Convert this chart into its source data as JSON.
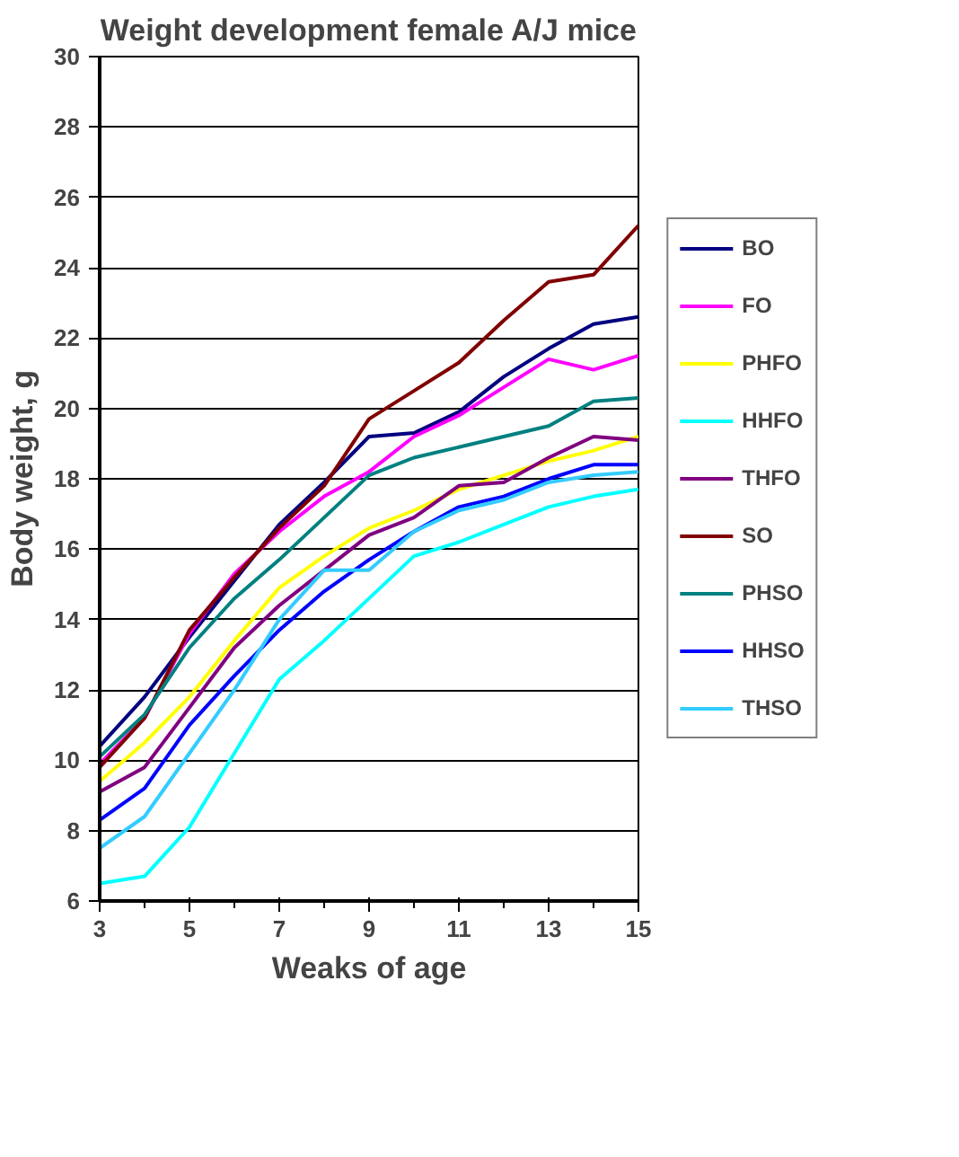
{
  "chart_data": {
    "type": "line",
    "title": "Weight development female A/J mice",
    "xlabel": "Weaks of age",
    "ylabel": "Body weight, g",
    "x": [
      3,
      4,
      5,
      6,
      7,
      8,
      9,
      10,
      11,
      12,
      13,
      14,
      15
    ],
    "xlim": [
      3,
      15
    ],
    "xticks": [
      3,
      5,
      7,
      9,
      11,
      13,
      15
    ],
    "ylim": [
      6,
      30
    ],
    "yticks": [
      6,
      8,
      10,
      12,
      14,
      16,
      18,
      20,
      22,
      24,
      26,
      28,
      30
    ],
    "grid": "y",
    "legend": "right",
    "marker": "none",
    "line_style": "solid",
    "series": [
      {
        "name": "BO",
        "color": "#000080",
        "values": [
          10.4,
          11.8,
          13.5,
          15.1,
          16.7,
          17.9,
          19.2,
          19.3,
          19.9,
          20.9,
          21.7,
          22.4,
          22.6
        ]
      },
      {
        "name": "FO",
        "color": "#ff00ff",
        "values": [
          9.9,
          11.2,
          13.6,
          15.3,
          16.5,
          17.5,
          18.2,
          19.2,
          19.8,
          20.6,
          21.4,
          21.1,
          21.5
        ]
      },
      {
        "name": "PHFO",
        "color": "#ffff00",
        "values": [
          9.4,
          10.5,
          11.8,
          13.4,
          14.9,
          15.8,
          16.6,
          17.1,
          17.7,
          18.1,
          18.5,
          18.8,
          19.2
        ]
      },
      {
        "name": "HHFO",
        "color": "#00ffff",
        "values": [
          6.5,
          6.7,
          8.1,
          10.2,
          12.3,
          13.4,
          14.6,
          15.8,
          16.2,
          16.7,
          17.2,
          17.5,
          17.7
        ]
      },
      {
        "name": "THFO",
        "color": "#800080",
        "values": [
          9.1,
          9.8,
          11.5,
          13.2,
          14.4,
          15.4,
          16.4,
          16.9,
          17.8,
          17.9,
          18.6,
          19.2,
          19.1
        ]
      },
      {
        "name": "SO",
        "color": "#800000",
        "values": [
          9.8,
          11.2,
          13.7,
          15.2,
          16.6,
          17.8,
          19.7,
          20.5,
          21.3,
          22.5,
          23.6,
          23.8,
          25.2
        ]
      },
      {
        "name": "PHSO",
        "color": "#008080",
        "values": [
          10.1,
          11.3,
          13.2,
          14.6,
          15.7,
          16.9,
          18.1,
          18.6,
          18.9,
          19.2,
          19.5,
          20.2,
          20.3
        ]
      },
      {
        "name": "HHSO",
        "color": "#0000ff",
        "values": [
          8.3,
          9.2,
          11.0,
          12.4,
          13.7,
          14.8,
          15.7,
          16.5,
          17.2,
          17.5,
          18.0,
          18.4,
          18.4
        ]
      },
      {
        "name": "THSO",
        "color": "#33ccff",
        "values": [
          7.5,
          8.4,
          10.2,
          12.0,
          14.0,
          15.4,
          15.4,
          16.5,
          17.1,
          17.4,
          17.9,
          18.1,
          18.2
        ]
      }
    ]
  }
}
